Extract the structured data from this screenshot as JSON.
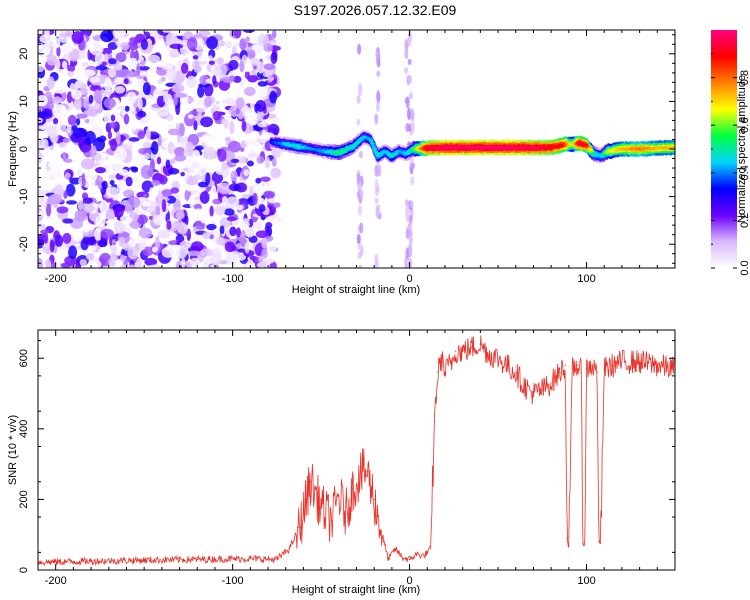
{
  "title": "S197.2026.057.12.32.E09",
  "chart_data": [
    {
      "type": "heatmap",
      "title": "S197.2026.057.12.32.E09",
      "xlabel": "Height of straight line (km)",
      "ylabel": "Frequency (Hz)",
      "xlim": [
        -210,
        150
      ],
      "ylim": [
        -25,
        25
      ],
      "x_ticks": [
        -200,
        -100,
        0,
        100
      ],
      "y_ticks": [
        -20,
        -10,
        0,
        10,
        20
      ],
      "colorbar": {
        "label": "Normalized spectral amplitude",
        "range": [
          0,
          1
        ],
        "ticks": [
          "0.0",
          "0.2",
          "0.4",
          "0.6",
          "0.8"
        ],
        "colors": [
          "#ffffff",
          "#d9b8ff",
          "#6a00ff",
          "#0000ff",
          "#00d5ff",
          "#00ff40",
          "#ffff00",
          "#ff7f00",
          "#ff0000",
          "#ff0080"
        ]
      },
      "signal_trace": {
        "description_free": true,
        "noise_region_x": [
          -210,
          -75
        ],
        "x": [
          -78,
          -70,
          -62,
          -55,
          -48,
          -40,
          -32,
          -26,
          -22,
          -18,
          -14,
          -10,
          -6,
          -2,
          2,
          10,
          20,
          40,
          60,
          80,
          88,
          92,
          96,
          100,
          104,
          108,
          112,
          120,
          130,
          140,
          150
        ],
        "frequency": [
          1.5,
          1.0,
          0.5,
          0.0,
          -0.5,
          -0.8,
          0.5,
          2.5,
          2.0,
          -1.5,
          -0.5,
          -1.5,
          -0.5,
          -1.0,
          0.0,
          0.2,
          0.3,
          0.3,
          0.3,
          0.3,
          1.0,
          1.0,
          1.2,
          0.8,
          -1.0,
          -1.5,
          -0.5,
          0.0,
          0.0,
          0.2,
          0.3
        ],
        "amplitude": [
          0.3,
          0.4,
          0.45,
          0.35,
          0.4,
          0.5,
          0.45,
          0.4,
          0.4,
          0.45,
          0.4,
          0.45,
          0.4,
          0.4,
          0.5,
          0.9,
          0.95,
          0.95,
          0.95,
          0.9,
          0.85,
          0.6,
          0.9,
          0.85,
          0.5,
          0.4,
          0.6,
          0.7,
          0.75,
          0.7,
          0.7
        ]
      }
    },
    {
      "type": "line",
      "xlabel": "Height of straight line (km)",
      "ylabel": "SNR (10 * v/v)",
      "xlim": [
        -210,
        150
      ],
      "ylim": [
        0,
        680
      ],
      "x_ticks": [
        -200,
        -100,
        0,
        100
      ],
      "y_ticks": [
        0,
        200,
        400,
        600
      ],
      "series": [
        {
          "name": "SNR",
          "color": "#e8322a",
          "x": [
            -210,
            -180,
            -150,
            -120,
            -90,
            -75,
            -68,
            -62,
            -56,
            -50,
            -44,
            -40,
            -36,
            -32,
            -28,
            -24,
            -20,
            -16,
            -12,
            -8,
            -4,
            0,
            4,
            8,
            12,
            14,
            16,
            18,
            20,
            22,
            24,
            26,
            30,
            35,
            40,
            45,
            50,
            55,
            60,
            65,
            70,
            75,
            80,
            85,
            88,
            89,
            90,
            92,
            95,
            97,
            98,
            99,
            100,
            103,
            106,
            107,
            108,
            110,
            115,
            120,
            130,
            140,
            150
          ],
          "y": [
            22,
            25,
            28,
            30,
            32,
            30,
            60,
            120,
            250,
            180,
            140,
            210,
            160,
            230,
            270,
            280,
            200,
            110,
            30,
            60,
            35,
            30,
            45,
            40,
            60,
            420,
            560,
            600,
            560,
            580,
            590,
            620,
            620,
            630,
            640,
            610,
            600,
            580,
            560,
            520,
            500,
            510,
            530,
            560,
            580,
            90,
            70,
            570,
            580,
            560,
            75,
            70,
            570,
            580,
            560,
            80,
            75,
            570,
            580,
            590,
            590,
            580,
            570
          ]
        }
      ]
    }
  ]
}
